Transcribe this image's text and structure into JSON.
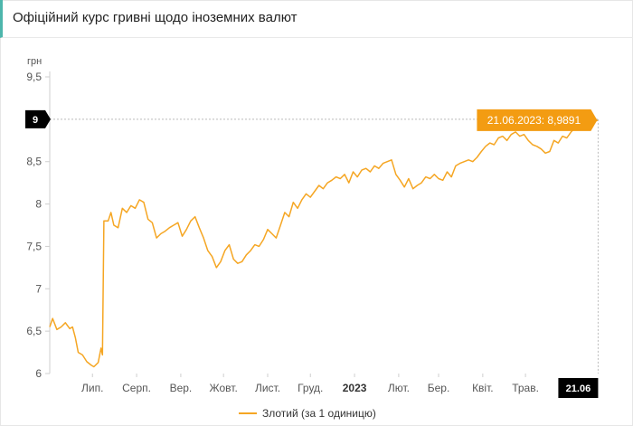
{
  "header": {
    "title": "Офіційний курс гривні щодо іноземних валют"
  },
  "colors": {
    "line": "#f5a623",
    "tooltip": "#f39c12",
    "badge": "#000000"
  },
  "chart_data": {
    "type": "line",
    "title": "",
    "xlabel": "",
    "ylabel": "грн",
    "ylim": [
      6,
      9.5
    ],
    "yticks": [
      "9,5",
      "9",
      "8,5",
      "8",
      "7,5",
      "7",
      "6,5",
      "6"
    ],
    "xticks": [
      {
        "label": "Лип.",
        "x": "2022-07-01",
        "bold": false
      },
      {
        "label": "Серп.",
        "x": "2022-08-01",
        "bold": false
      },
      {
        "label": "Вер.",
        "x": "2022-09-01",
        "bold": false
      },
      {
        "label": "Жовт.",
        "x": "2022-10-01",
        "bold": false
      },
      {
        "label": "Лист.",
        "x": "2022-11-01",
        "bold": false
      },
      {
        "label": "Груд.",
        "x": "2022-12-01",
        "bold": false
      },
      {
        "label": "2023",
        "x": "2023-01-01",
        "bold": true
      },
      {
        "label": "Лют.",
        "x": "2023-02-01",
        "bold": false
      },
      {
        "label": "Бер.",
        "x": "2023-03-01",
        "bold": false
      },
      {
        "label": "Квіт.",
        "x": "2023-04-01",
        "bold": false
      },
      {
        "label": "Трав.",
        "x": "2023-05-01",
        "bold": false
      }
    ],
    "xrange": [
      "2022-06-01",
      "2023-06-22"
    ],
    "grid": {
      "horizontal": false,
      "vertical": false
    },
    "legend_position": "bottom-center",
    "series": [
      {
        "name": "Злотий (за 1 одиницю)",
        "points": [
          [
            "2022-06-01",
            6.55
          ],
          [
            "2022-06-03",
            6.65
          ],
          [
            "2022-06-06",
            6.52
          ],
          [
            "2022-06-09",
            6.55
          ],
          [
            "2022-06-12",
            6.6
          ],
          [
            "2022-06-15",
            6.53
          ],
          [
            "2022-06-17",
            6.55
          ],
          [
            "2022-06-19",
            6.42
          ],
          [
            "2022-06-21",
            6.25
          ],
          [
            "2022-06-24",
            6.22
          ],
          [
            "2022-06-27",
            6.14
          ],
          [
            "2022-06-30",
            6.1
          ],
          [
            "2022-07-02",
            6.08
          ],
          [
            "2022-07-05",
            6.13
          ],
          [
            "2022-07-07",
            6.3
          ],
          [
            "2022-07-08",
            6.22
          ],
          [
            "2022-07-09",
            7.8
          ],
          [
            "2022-07-12",
            7.8
          ],
          [
            "2022-07-14",
            7.9
          ],
          [
            "2022-07-16",
            7.75
          ],
          [
            "2022-07-19",
            7.72
          ],
          [
            "2022-07-22",
            7.95
          ],
          [
            "2022-07-25",
            7.9
          ],
          [
            "2022-07-28",
            7.98
          ],
          [
            "2022-07-31",
            7.95
          ],
          [
            "2022-08-03",
            8.05
          ],
          [
            "2022-08-06",
            8.02
          ],
          [
            "2022-08-09",
            7.82
          ],
          [
            "2022-08-12",
            7.78
          ],
          [
            "2022-08-15",
            7.6
          ],
          [
            "2022-08-18",
            7.65
          ],
          [
            "2022-08-21",
            7.68
          ],
          [
            "2022-08-24",
            7.72
          ],
          [
            "2022-08-27",
            7.75
          ],
          [
            "2022-08-30",
            7.78
          ],
          [
            "2022-09-02",
            7.62
          ],
          [
            "2022-09-05",
            7.7
          ],
          [
            "2022-09-08",
            7.8
          ],
          [
            "2022-09-11",
            7.85
          ],
          [
            "2022-09-14",
            7.72
          ],
          [
            "2022-09-17",
            7.6
          ],
          [
            "2022-09-20",
            7.45
          ],
          [
            "2022-09-23",
            7.38
          ],
          [
            "2022-09-26",
            7.25
          ],
          [
            "2022-09-29",
            7.32
          ],
          [
            "2022-10-02",
            7.45
          ],
          [
            "2022-10-05",
            7.52
          ],
          [
            "2022-10-08",
            7.35
          ],
          [
            "2022-10-11",
            7.3
          ],
          [
            "2022-10-14",
            7.32
          ],
          [
            "2022-10-17",
            7.4
          ],
          [
            "2022-10-20",
            7.45
          ],
          [
            "2022-10-23",
            7.52
          ],
          [
            "2022-10-26",
            7.5
          ],
          [
            "2022-10-29",
            7.58
          ],
          [
            "2022-11-01",
            7.7
          ],
          [
            "2022-11-04",
            7.65
          ],
          [
            "2022-11-07",
            7.6
          ],
          [
            "2022-11-10",
            7.75
          ],
          [
            "2022-11-13",
            7.9
          ],
          [
            "2022-11-16",
            7.85
          ],
          [
            "2022-11-19",
            8.02
          ],
          [
            "2022-11-22",
            7.95
          ],
          [
            "2022-11-25",
            8.05
          ],
          [
            "2022-11-28",
            8.12
          ],
          [
            "2022-12-01",
            8.08
          ],
          [
            "2022-12-04",
            8.15
          ],
          [
            "2022-12-07",
            8.22
          ],
          [
            "2022-12-10",
            8.18
          ],
          [
            "2022-12-13",
            8.25
          ],
          [
            "2022-12-16",
            8.28
          ],
          [
            "2022-12-19",
            8.32
          ],
          [
            "2022-12-22",
            8.3
          ],
          [
            "2022-12-25",
            8.35
          ],
          [
            "2022-12-28",
            8.25
          ],
          [
            "2022-12-31",
            8.38
          ],
          [
            "2023-01-03",
            8.32
          ],
          [
            "2023-01-06",
            8.4
          ],
          [
            "2023-01-09",
            8.42
          ],
          [
            "2023-01-12",
            8.38
          ],
          [
            "2023-01-15",
            8.45
          ],
          [
            "2023-01-18",
            8.42
          ],
          [
            "2023-01-21",
            8.48
          ],
          [
            "2023-01-24",
            8.5
          ],
          [
            "2023-01-27",
            8.52
          ],
          [
            "2023-01-30",
            8.35
          ],
          [
            "2023-02-02",
            8.28
          ],
          [
            "2023-02-05",
            8.2
          ],
          [
            "2023-02-08",
            8.3
          ],
          [
            "2023-02-11",
            8.18
          ],
          [
            "2023-02-14",
            8.22
          ],
          [
            "2023-02-17",
            8.25
          ],
          [
            "2023-02-20",
            8.32
          ],
          [
            "2023-02-23",
            8.3
          ],
          [
            "2023-02-26",
            8.35
          ],
          [
            "2023-03-01",
            8.3
          ],
          [
            "2023-03-04",
            8.28
          ],
          [
            "2023-03-07",
            8.38
          ],
          [
            "2023-03-10",
            8.32
          ],
          [
            "2023-03-13",
            8.45
          ],
          [
            "2023-03-16",
            8.48
          ],
          [
            "2023-03-19",
            8.5
          ],
          [
            "2023-03-22",
            8.52
          ],
          [
            "2023-03-25",
            8.5
          ],
          [
            "2023-03-28",
            8.55
          ],
          [
            "2023-03-31",
            8.62
          ],
          [
            "2023-04-03",
            8.68
          ],
          [
            "2023-04-06",
            8.72
          ],
          [
            "2023-04-09",
            8.7
          ],
          [
            "2023-04-12",
            8.78
          ],
          [
            "2023-04-15",
            8.8
          ],
          [
            "2023-04-18",
            8.75
          ],
          [
            "2023-04-21",
            8.82
          ],
          [
            "2023-04-24",
            8.85
          ],
          [
            "2023-04-27",
            8.8
          ],
          [
            "2023-04-30",
            8.82
          ],
          [
            "2023-05-03",
            8.75
          ],
          [
            "2023-05-06",
            8.7
          ],
          [
            "2023-05-09",
            8.68
          ],
          [
            "2023-05-12",
            8.65
          ],
          [
            "2023-05-15",
            8.6
          ],
          [
            "2023-05-18",
            8.62
          ],
          [
            "2023-05-21",
            8.75
          ],
          [
            "2023-05-24",
            8.72
          ],
          [
            "2023-05-27",
            8.8
          ],
          [
            "2023-05-30",
            8.78
          ],
          [
            "2023-06-02",
            8.85
          ],
          [
            "2023-06-05",
            8.9
          ],
          [
            "2023-06-08",
            8.92
          ],
          [
            "2023-06-11",
            8.95
          ],
          [
            "2023-06-14",
            8.93
          ],
          [
            "2023-06-17",
            8.97
          ],
          [
            "2023-06-21",
            8.9891
          ]
        ]
      }
    ],
    "annotations": {
      "tooltip": "21.06.2023: 8,9891",
      "y_crosshair_label": "9",
      "x_crosshair_label": "21.06"
    }
  }
}
